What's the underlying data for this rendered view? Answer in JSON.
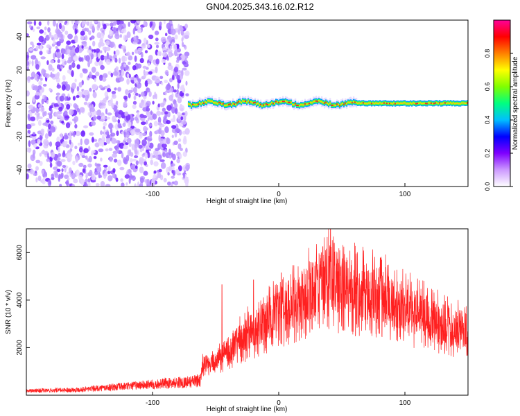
{
  "title": "GN04.2025.343.16.02.R12",
  "chart_data": [
    {
      "type": "heatmap",
      "xlabel": "Height of straight line (km)",
      "ylabel": "Frequency (Hz)",
      "xlim": [
        -200,
        150
      ],
      "ylim": [
        -50,
        50
      ],
      "xticks": [
        -100,
        0,
        100
      ],
      "yticks": [
        -40,
        -20,
        0,
        20,
        40
      ],
      "noise_region_x": [
        -200,
        -72
      ],
      "signal_region_x": [
        -72,
        150
      ],
      "signal_frequency": 0,
      "colorbar": {
        "label": "Normalized spectral amplitude",
        "range": [
          0,
          1
        ],
        "ticks": [
          0,
          0.2,
          0.4,
          0.6,
          0.8
        ],
        "tick_labels": [
          "0.0",
          "0.2",
          "0.4",
          "0.6",
          "0.8"
        ],
        "colors": [
          "#ffffff",
          "#cc99ff",
          "#7f00ff",
          "#0000ff",
          "#00bfff",
          "#00ff80",
          "#80ff00",
          "#ffff00",
          "#ff8000",
          "#ff0000",
          "#ff0099"
        ]
      }
    },
    {
      "type": "line",
      "xlabel": "Height of straight line (km)",
      "ylabel": "SNR (10 * v/v)",
      "xlim": [
        -200,
        150
      ],
      "ylim": [
        0,
        7000
      ],
      "xticks": [
        -100,
        0,
        100
      ],
      "yticks": [
        2000,
        4000,
        6000
      ],
      "color": "#ff2020",
      "trend": {
        "x": [
          -200,
          -160,
          -120,
          -90,
          -70,
          -62,
          -60,
          -55,
          -45,
          -35,
          -25,
          -15,
          -5,
          5,
          15,
          25,
          35,
          40,
          42,
          45,
          60,
          80,
          100,
          120,
          140,
          150
        ],
        "y": [
          180,
          230,
          380,
          500,
          560,
          640,
          1450,
          1250,
          1700,
          2150,
          2600,
          2950,
          3300,
          3700,
          4000,
          4400,
          4700,
          5000,
          5100,
          4750,
          4450,
          4250,
          3700,
          3200,
          2850,
          2700
        ]
      },
      "spikes": [
        {
          "x": -45,
          "y": 4650
        },
        {
          "x": -20,
          "y": 4850
        },
        {
          "x": 2,
          "y": 5150
        },
        {
          "x": 35,
          "y": 6250
        },
        {
          "x": 41,
          "y": 7000
        },
        {
          "x": 44,
          "y": 6400
        }
      ]
    }
  ]
}
